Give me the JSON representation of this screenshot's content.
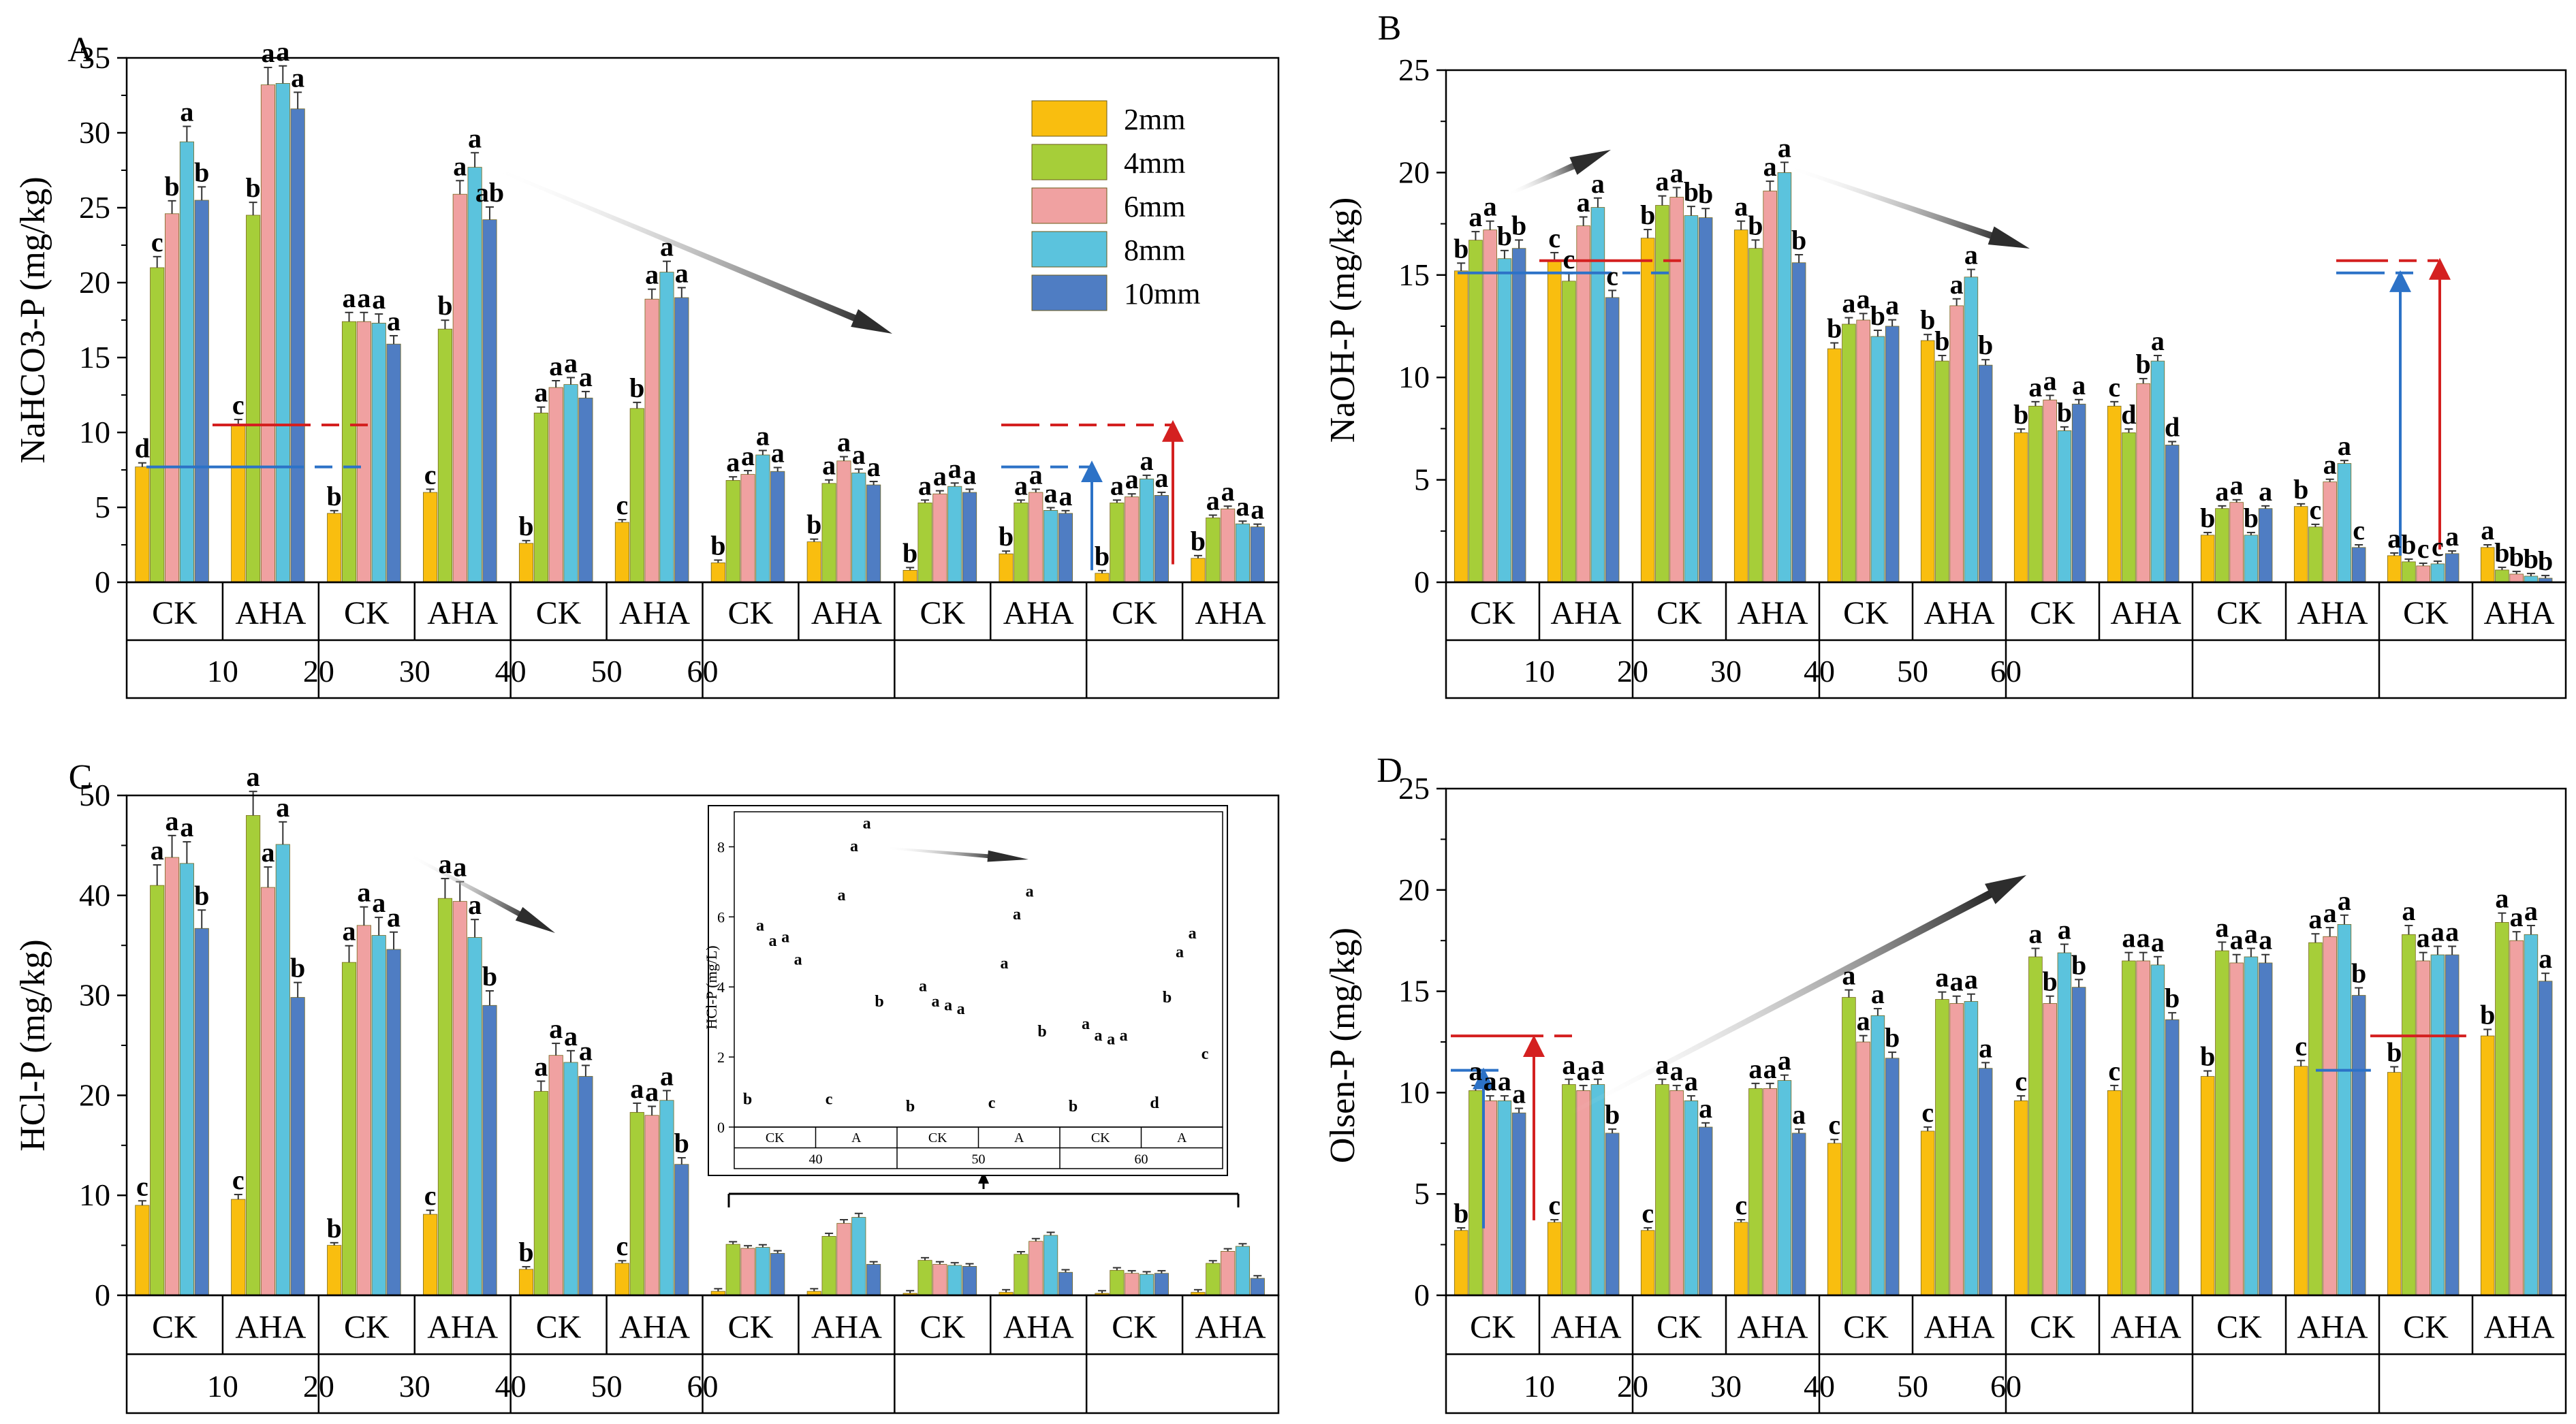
{
  "figure": {
    "legend": {
      "items": [
        "2mm",
        "4mm",
        "6mm",
        "8mm",
        "10mm"
      ],
      "colors": [
        "#F9BE0F",
        "#A6CE39",
        "#F0A1A1",
        "#5BC3DD",
        "#4F7DC3"
      ]
    },
    "group_labels": [
      "CK",
      "AHA"
    ],
    "depth_labels": [
      "10",
      "20",
      "30",
      "40",
      "50",
      "60"
    ]
  },
  "chart_data": [
    {
      "type": "bar",
      "panel": "A",
      "ylabel": "NaHCO3-P (mg/kg)",
      "ylim": [
        0,
        35
      ],
      "yticks": [
        0,
        5,
        10,
        15,
        20,
        25,
        30,
        35
      ],
      "series_names": [
        "2mm",
        "4mm",
        "6mm",
        "8mm",
        "10mm"
      ],
      "groups": [
        {
          "depth": "10",
          "treatment": "CK",
          "values": [
            7.7,
            21,
            24.6,
            29.4,
            25.5
          ],
          "letters": [
            "d",
            "c",
            "b",
            "a",
            "b"
          ]
        },
        {
          "depth": "10",
          "treatment": "AHA",
          "values": [
            10.5,
            24.5,
            33.2,
            33.3,
            31.6
          ],
          "letters": [
            "c",
            "b",
            "a",
            "a",
            "a"
          ]
        },
        {
          "depth": "20",
          "treatment": "CK",
          "values": [
            4.6,
            17.4,
            17.4,
            17.3,
            15.9
          ],
          "letters": [
            "b",
            "a",
            "a",
            "a",
            "a"
          ]
        },
        {
          "depth": "20",
          "treatment": "AHA",
          "values": [
            6,
            16.9,
            25.9,
            27.7,
            24.2
          ],
          "letters": [
            "c",
            "b",
            "a",
            "a",
            "ab"
          ]
        },
        {
          "depth": "30",
          "treatment": "CK",
          "values": [
            2.6,
            11.3,
            13,
            13.2,
            12.3
          ],
          "letters": [
            "b",
            "a",
            "a",
            "a",
            "a"
          ]
        },
        {
          "depth": "30",
          "treatment": "AHA",
          "values": [
            4,
            11.6,
            18.9,
            20.7,
            19
          ],
          "letters": [
            "c",
            "b",
            "a",
            "a",
            "a"
          ]
        },
        {
          "depth": "40",
          "treatment": "CK",
          "values": [
            1.3,
            6.8,
            7.2,
            8.5,
            7.4
          ],
          "letters": [
            "b",
            "a",
            "a",
            "a",
            "a"
          ]
        },
        {
          "depth": "40",
          "treatment": "AHA",
          "values": [
            2.7,
            6.6,
            8.1,
            7.3,
            6.5
          ],
          "letters": [
            "b",
            "a",
            "a",
            "a",
            "a"
          ]
        },
        {
          "depth": "50",
          "treatment": "CK",
          "values": [
            0.8,
            5.3,
            5.9,
            6.4,
            6
          ],
          "letters": [
            "b",
            "a",
            "a",
            "a",
            "a"
          ]
        },
        {
          "depth": "50",
          "treatment": "AHA",
          "values": [
            1.9,
            5.3,
            6,
            4.8,
            4.6
          ],
          "letters": [
            "b",
            "a",
            "a",
            "a",
            "a"
          ]
        },
        {
          "depth": "60",
          "treatment": "CK",
          "values": [
            0.6,
            5.3,
            5.7,
            6.9,
            5.8
          ],
          "letters": [
            "b",
            "a",
            "a",
            "a",
            "a"
          ]
        },
        {
          "depth": "60",
          "treatment": "AHA",
          "values": [
            1.6,
            4.3,
            4.9,
            3.9,
            3.7
          ],
          "letters": [
            "b",
            "a",
            "a",
            "a",
            "a"
          ]
        }
      ],
      "reference_lines": [
        {
          "color": "#D42020",
          "value": 10.5
        },
        {
          "color": "#2C72C7",
          "value": 7.7
        }
      ]
    },
    {
      "type": "bar",
      "panel": "B",
      "ylabel": "NaOH-P (mg/kg)",
      "ylim": [
        0,
        25
      ],
      "yticks": [
        0,
        5,
        10,
        15,
        20,
        25
      ],
      "series_names": [
        "2mm",
        "4mm",
        "6mm",
        "8mm",
        "10mm"
      ],
      "groups": [
        {
          "depth": "10",
          "treatment": "CK",
          "values": [
            15.2,
            16.7,
            17.2,
            15.8,
            16.3
          ],
          "letters": [
            "b",
            "a",
            "a",
            "b",
            "b"
          ]
        },
        {
          "depth": "10",
          "treatment": "AHA",
          "values": [
            15.7,
            14.7,
            17.4,
            18.3,
            13.9
          ],
          "letters": [
            "c",
            "c",
            "a",
            "a",
            "c"
          ]
        },
        {
          "depth": "20",
          "treatment": "CK",
          "values": [
            16.8,
            18.4,
            18.8,
            17.9,
            17.8
          ],
          "letters": [
            "b",
            "a",
            "a",
            "b",
            "b"
          ]
        },
        {
          "depth": "20",
          "treatment": "AHA",
          "values": [
            17.2,
            16.3,
            19.1,
            20,
            15.6
          ],
          "letters": [
            "a",
            "b",
            "a",
            "a",
            "b"
          ]
        },
        {
          "depth": "30",
          "treatment": "CK",
          "values": [
            11.4,
            12.6,
            12.8,
            12,
            12.5
          ],
          "letters": [
            "b",
            "a",
            "a",
            "b",
            "a"
          ]
        },
        {
          "depth": "30",
          "treatment": "AHA",
          "values": [
            11.8,
            10.8,
            13.5,
            14.9,
            10.6
          ],
          "letters": [
            "b",
            "b",
            "a",
            "a",
            "b"
          ]
        },
        {
          "depth": "40",
          "treatment": "CK",
          "values": [
            7.3,
            8.6,
            8.9,
            7.4,
            8.7
          ],
          "letters": [
            "b",
            "a",
            "a",
            "b",
            "a"
          ]
        },
        {
          "depth": "40",
          "treatment": "AHA",
          "values": [
            8.6,
            7.3,
            9.7,
            10.8,
            6.7
          ],
          "letters": [
            "c",
            "d",
            "b",
            "a",
            "d"
          ]
        },
        {
          "depth": "50",
          "treatment": "CK",
          "values": [
            2.3,
            3.6,
            3.9,
            2.3,
            3.6
          ],
          "letters": [
            "b",
            "a",
            "a",
            "b",
            "a"
          ]
        },
        {
          "depth": "50",
          "treatment": "AHA",
          "values": [
            3.7,
            2.7,
            4.9,
            5.8,
            1.7
          ],
          "letters": [
            "b",
            "c",
            "a",
            "a",
            "c"
          ]
        },
        {
          "depth": "60",
          "treatment": "CK",
          "values": [
            1.3,
            1,
            0.8,
            0.9,
            1.4
          ],
          "letters": [
            "a",
            "b",
            "c",
            "c",
            "a"
          ]
        },
        {
          "depth": "60",
          "treatment": "AHA",
          "values": [
            1.7,
            0.6,
            0.4,
            0.3,
            0.2
          ],
          "letters": [
            "a",
            "b",
            "b",
            "b",
            "b"
          ]
        }
      ],
      "reference_lines": [
        {
          "color": "#D42020",
          "value": 15.7
        },
        {
          "color": "#2C72C7",
          "value": 15.1
        }
      ]
    },
    {
      "type": "bar",
      "panel": "C",
      "ylabel": "HCl-P (mg/kg)",
      "ylim": [
        0,
        50
      ],
      "yticks": [
        0,
        10,
        20,
        30,
        40,
        50
      ],
      "series_names": [
        "2mm",
        "4mm",
        "6mm",
        "8mm",
        "10mm"
      ],
      "groups": [
        {
          "depth": "10",
          "treatment": "CK",
          "values": [
            9,
            41,
            43.8,
            43.2,
            36.7
          ],
          "letters": [
            "c",
            "a",
            "a",
            "a",
            "b"
          ]
        },
        {
          "depth": "10",
          "treatment": "AHA",
          "values": [
            9.6,
            48,
            40.8,
            45.1,
            29.8
          ],
          "letters": [
            "c",
            "a",
            "a",
            "a",
            "b"
          ]
        },
        {
          "depth": "20",
          "treatment": "CK",
          "values": [
            5,
            33.3,
            37,
            36,
            34.6
          ],
          "letters": [
            "b",
            "a",
            "a",
            "a",
            "a"
          ]
        },
        {
          "depth": "20",
          "treatment": "AHA",
          "values": [
            8.1,
            39.7,
            39.4,
            35.8,
            29
          ],
          "letters": [
            "c",
            "a",
            "a",
            "a",
            "b"
          ]
        },
        {
          "depth": "30",
          "treatment": "CK",
          "values": [
            2.6,
            20.4,
            24,
            23.3,
            21.9
          ],
          "letters": [
            "b",
            "a",
            "a",
            "a",
            "a"
          ]
        },
        {
          "depth": "30",
          "treatment": "AHA",
          "values": [
            3.2,
            18.3,
            18,
            19.5,
            13.1
          ],
          "letters": [
            "c",
            "a",
            "a",
            "a",
            "b"
          ]
        },
        {
          "depth": "40",
          "treatment": "CK",
          "values": [
            0.4,
            5.1,
            4.7,
            4.8,
            4.2
          ],
          "letters": [
            "",
            "",
            "",
            "",
            ""
          ]
        },
        {
          "depth": "40",
          "treatment": "AHA",
          "values": [
            0.4,
            5.9,
            7.2,
            7.8,
            3.1
          ],
          "letters": [
            "",
            "",
            "",
            "",
            ""
          ]
        },
        {
          "depth": "50",
          "treatment": "CK",
          "values": [
            0.2,
            3.5,
            3.1,
            3,
            2.9
          ],
          "letters": [
            "",
            "",
            "",
            "",
            ""
          ]
        },
        {
          "depth": "50",
          "treatment": "AHA",
          "values": [
            0.3,
            4.1,
            5.4,
            6,
            2.3
          ],
          "letters": [
            "",
            "",
            "",
            "",
            ""
          ]
        },
        {
          "depth": "60",
          "treatment": "CK",
          "values": [
            0.2,
            2.5,
            2.2,
            2.1,
            2.2
          ],
          "letters": [
            "",
            "",
            "",
            "",
            ""
          ]
        },
        {
          "depth": "60",
          "treatment": "AHA",
          "values": [
            0.3,
            3.2,
            4.4,
            4.9,
            1.7
          ],
          "letters": [
            "",
            "",
            "",
            "",
            ""
          ]
        }
      ],
      "inset": {
        "ylabel": "HCl-P (mg/L)",
        "ylim": [
          0,
          9
        ],
        "yticks": [
          0,
          2,
          4,
          6,
          8
        ],
        "group_labels": [
          "CK",
          "A"
        ],
        "depth_labels": [
          "40",
          "50",
          "60"
        ],
        "letters": [
          [
            "b",
            "a",
            "a",
            "a",
            "a"
          ],
          [
            "c",
            "a",
            "a",
            "a",
            "b"
          ],
          [
            "b",
            "a",
            "a",
            "a",
            "a"
          ],
          [
            "c",
            "a",
            "a",
            "a",
            "b"
          ],
          [
            "b",
            "a",
            "a",
            "a",
            "a"
          ],
          [
            "d",
            "b",
            "a",
            "a",
            "c"
          ]
        ]
      }
    },
    {
      "type": "bar",
      "panel": "D",
      "ylabel": "Olsen-P (mg/kg)",
      "ylim": [
        0,
        25
      ],
      "yticks": [
        0,
        5,
        10,
        15,
        20,
        25
      ],
      "series_names": [
        "2mm",
        "4mm",
        "6mm",
        "8mm",
        "10mm"
      ],
      "groups": [
        {
          "depth": "10",
          "treatment": "CK",
          "values": [
            3.2,
            10.1,
            9.6,
            9.6,
            9
          ],
          "letters": [
            "b",
            "a",
            "a",
            "a",
            "a"
          ]
        },
        {
          "depth": "10",
          "treatment": "AHA",
          "values": [
            3.6,
            10.4,
            10.1,
            10.4,
            8
          ],
          "letters": [
            "c",
            "a",
            "a",
            "a",
            "b"
          ]
        },
        {
          "depth": "20",
          "treatment": "CK",
          "values": [
            3.2,
            10.4,
            10.1,
            9.6,
            8.3
          ],
          "letters": [
            "c",
            "a",
            "a",
            "a",
            "a"
          ]
        },
        {
          "depth": "20",
          "treatment": "AHA",
          "values": [
            3.6,
            10.2,
            10.2,
            10.6,
            8
          ],
          "letters": [
            "c",
            "a",
            "a",
            "a",
            "a"
          ]
        },
        {
          "depth": "30",
          "treatment": "CK",
          "values": [
            7.5,
            14.7,
            12.5,
            13.8,
            11.7
          ],
          "letters": [
            "c",
            "a",
            "a",
            "a",
            "b"
          ]
        },
        {
          "depth": "30",
          "treatment": "AHA",
          "values": [
            8.1,
            14.6,
            14.4,
            14.5,
            11.2
          ],
          "letters": [
            "c",
            "a",
            "a",
            "a",
            "a"
          ]
        },
        {
          "depth": "40",
          "treatment": "CK",
          "values": [
            9.6,
            16.7,
            14.4,
            16.9,
            15.2
          ],
          "letters": [
            "c",
            "a",
            "b",
            "a",
            "b"
          ]
        },
        {
          "depth": "40",
          "treatment": "AHA",
          "values": [
            10.1,
            16.5,
            16.5,
            16.3,
            13.6
          ],
          "letters": [
            "c",
            "a",
            "a",
            "a",
            "b"
          ]
        },
        {
          "depth": "50",
          "treatment": "CK",
          "values": [
            10.8,
            17,
            16.4,
            16.7,
            16.4
          ],
          "letters": [
            "b",
            "a",
            "a",
            "a",
            "a"
          ]
        },
        {
          "depth": "50",
          "treatment": "AHA",
          "values": [
            11.3,
            17.4,
            17.7,
            18.3,
            14.8
          ],
          "letters": [
            "c",
            "a",
            "a",
            "a",
            "b"
          ]
        },
        {
          "depth": "60",
          "treatment": "CK",
          "values": [
            11,
            17.8,
            16.5,
            16.8,
            16.8
          ],
          "letters": [
            "b",
            "a",
            "a",
            "a",
            "a"
          ]
        },
        {
          "depth": "60",
          "treatment": "AHA",
          "values": [
            12.8,
            18.4,
            17.5,
            17.8,
            15.5
          ],
          "letters": [
            "b",
            "a",
            "a",
            "a",
            "a"
          ]
        }
      ],
      "reference_lines": [
        {
          "color": "#D42020",
          "value": 12.8
        },
        {
          "color": "#2C72C7",
          "value": 11.1
        }
      ]
    }
  ]
}
